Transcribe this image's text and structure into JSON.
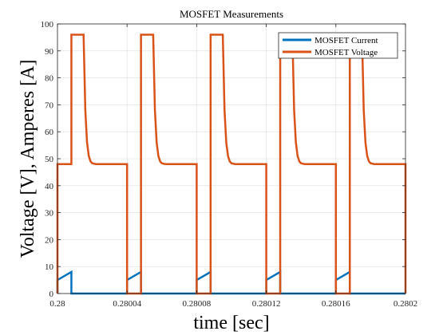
{
  "chart_data": {
    "type": "line",
    "title": "MOSFET Measurements",
    "xlabel": "time [sec]",
    "ylabel": "Voltage [V], Amperes [A]",
    "xlim": [
      0.28,
      0.2802
    ],
    "ylim": [
      0,
      100
    ],
    "xticks": [
      0.28,
      0.28004,
      0.28008,
      0.28012,
      0.28016,
      0.2802
    ],
    "xtick_labels": [
      "0.28",
      "0.28004",
      "0.28008",
      "0.28012",
      "0.28016",
      "0.2802"
    ],
    "yticks": [
      0,
      10,
      20,
      30,
      40,
      50,
      60,
      70,
      80,
      90,
      100
    ],
    "ytick_labels": [
      "0",
      "10",
      "20",
      "30",
      "40",
      "50",
      "60",
      "70",
      "80",
      "90",
      "100"
    ],
    "grid": true,
    "legend_position": "top-right",
    "series": [
      {
        "name": "MOSFET Current",
        "color": "#0072BD",
        "x": [
          0.28,
          0.28,
          0.280008,
          0.280008,
          0.28004,
          0.28004,
          0.280048,
          0.280048,
          0.28008,
          0.28008,
          0.280088,
          0.280088,
          0.28012,
          0.28012,
          0.280128,
          0.280128,
          0.28016,
          0.28016,
          0.280168,
          0.280168,
          0.2802
        ],
        "y": [
          0,
          5,
          8,
          0,
          0,
          5,
          8,
          0,
          0,
          5,
          8,
          0,
          0,
          5,
          8,
          0,
          0,
          5,
          8,
          0,
          0
        ]
      },
      {
        "name": "MOSFET Voltage",
        "color": "#D95319",
        "x": [
          0.28,
          0.28,
          0.280008,
          0.280008,
          0.280015,
          0.280016,
          0.280017,
          0.280018,
          0.280019,
          0.28002,
          0.280022,
          0.28004,
          0.28004,
          0.280048,
          0.280048,
          0.280055,
          0.280056,
          0.280057,
          0.280058,
          0.280059,
          0.28006,
          0.280062,
          0.28008,
          0.28008,
          0.280088,
          0.280088,
          0.280095,
          0.280096,
          0.280097,
          0.280098,
          0.280099,
          0.2801,
          0.280102,
          0.28012,
          0.28012,
          0.280128,
          0.280128,
          0.280135,
          0.280136,
          0.280137,
          0.280138,
          0.280139,
          0.28014,
          0.280142,
          0.28016,
          0.28016,
          0.280168,
          0.280168,
          0.280175,
          0.280176,
          0.280177,
          0.280178,
          0.280179,
          0.28018,
          0.280182,
          0.2802,
          0.2802
        ],
        "y": [
          0,
          48,
          48,
          96,
          96,
          68,
          56,
          51,
          49,
          48.3,
          48,
          48,
          0,
          0,
          96,
          96,
          68,
          56,
          51,
          49,
          48.3,
          48,
          48,
          0,
          0,
          96,
          96,
          68,
          56,
          51,
          49,
          48.3,
          48,
          48,
          0,
          0,
          96,
          96,
          68,
          56,
          51,
          49,
          48.3,
          48,
          48,
          0,
          0,
          96,
          96,
          68,
          56,
          51,
          49,
          48.3,
          48,
          48,
          0
        ]
      }
    ]
  }
}
